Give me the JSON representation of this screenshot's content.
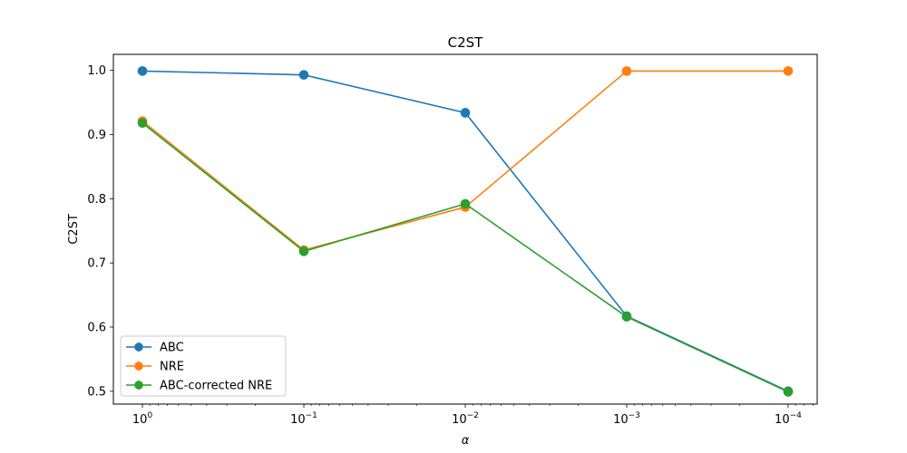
{
  "chart_data": {
    "type": "line",
    "title": "C2ST",
    "xlabel": "α",
    "ylabel": "C2ST",
    "xscale": "log",
    "x_inverted": true,
    "x": [
      1,
      0.1,
      0.01,
      0.001,
      0.0001
    ],
    "xtick_labels": [
      {
        "base": "10",
        "exp": "0"
      },
      {
        "base": "10",
        "exp": "−1"
      },
      {
        "base": "10",
        "exp": "−2"
      },
      {
        "base": "10",
        "exp": "−3"
      },
      {
        "base": "10",
        "exp": "−4"
      }
    ],
    "ylim": [
      0.48,
      1.025
    ],
    "yticks": [
      0.5,
      0.6,
      0.7,
      0.8,
      0.9,
      1.0
    ],
    "ytick_labels": [
      "0.5",
      "0.6",
      "0.7",
      "0.8",
      "0.9",
      "1.0"
    ],
    "grid": false,
    "legend_position": "lower-left",
    "series": [
      {
        "name": "ABC",
        "color": "#1f77b4",
        "values": [
          0.999,
          0.993,
          0.934,
          0.617,
          0.5
        ]
      },
      {
        "name": "NRE",
        "color": "#ff7f0e",
        "values": [
          0.921,
          0.72,
          0.787,
          0.999,
          0.999
        ]
      },
      {
        "name": "ABC-corrected NRE",
        "color": "#2ca02c",
        "values": [
          0.918,
          0.718,
          0.792,
          0.616,
          0.499
        ]
      }
    ]
  }
}
